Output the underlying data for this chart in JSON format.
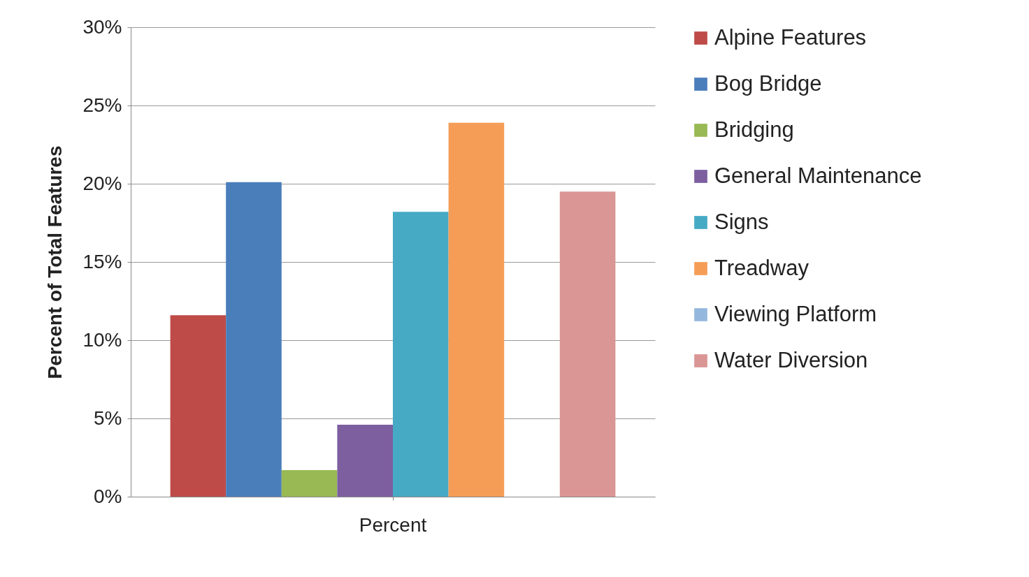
{
  "chart_data": {
    "type": "bar",
    "ylabel": "Percent of Total Features",
    "categories": [
      "Percent"
    ],
    "series": [
      {
        "name": "Alpine Features",
        "color": "#be4b48",
        "values": [
          11.6
        ]
      },
      {
        "name": "Bog Bridge",
        "color": "#4a7ebb",
        "values": [
          20.1
        ]
      },
      {
        "name": "Bridging",
        "color": "#98b954",
        "values": [
          1.7
        ]
      },
      {
        "name": "General Maintenance",
        "color": "#7d5fa0",
        "values": [
          4.6
        ]
      },
      {
        "name": "Signs",
        "color": "#46aac5",
        "values": [
          18.2
        ]
      },
      {
        "name": "Treadway",
        "color": "#f59d56",
        "values": [
          23.9
        ]
      },
      {
        "name": "Viewing Platform",
        "color": "#94b8dd",
        "values": [
          0
        ]
      },
      {
        "name": "Water Diversion",
        "color": "#da9694",
        "values": [
          19.5
        ]
      }
    ],
    "ylim": [
      0,
      30
    ],
    "yticks": [
      {
        "value": 0,
        "label": "0%"
      },
      {
        "value": 5,
        "label": "5%"
      },
      {
        "value": 10,
        "label": "10%"
      },
      {
        "value": 15,
        "label": "15%"
      },
      {
        "value": 20,
        "label": "20%"
      },
      {
        "value": 25,
        "label": "25%"
      },
      {
        "value": 30,
        "label": "30%"
      }
    ],
    "grid": "y",
    "legend": "right"
  }
}
